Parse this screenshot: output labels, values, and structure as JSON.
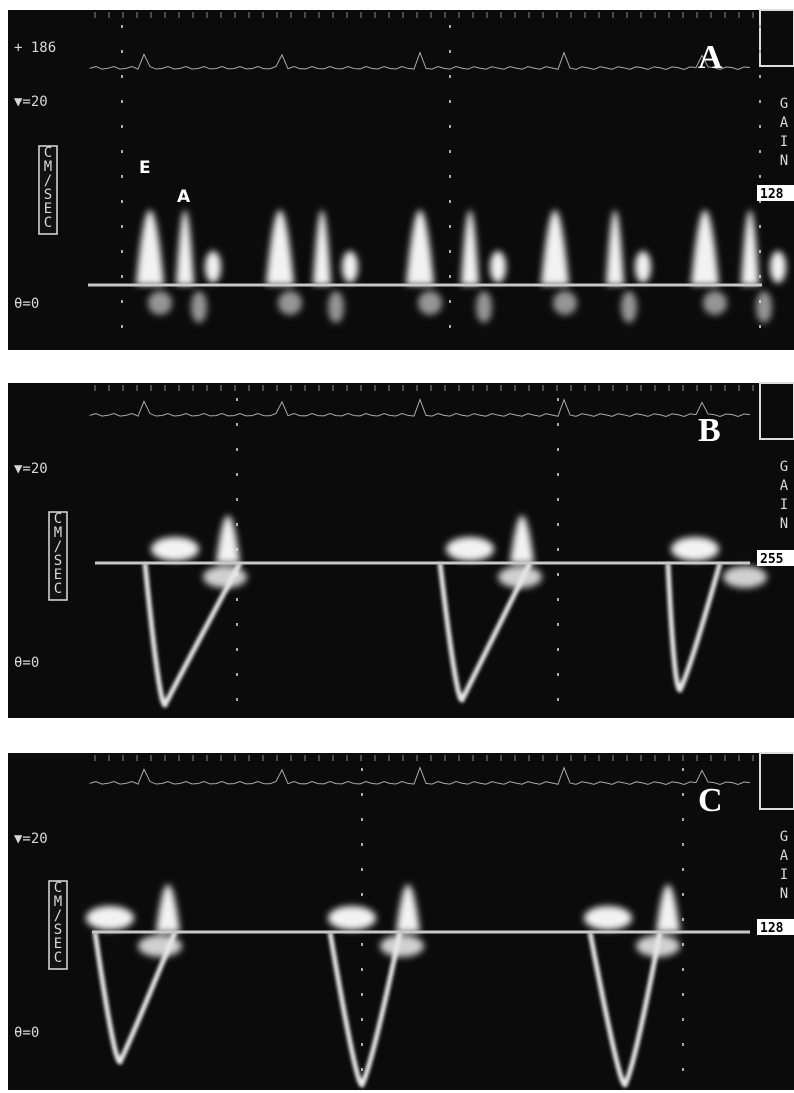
{
  "panels": [
    {
      "label": "A",
      "rate": "+ 186",
      "scale": "▼=20",
      "units": "CM/SEC",
      "angle": "θ=0",
      "gain_label": "GAIN",
      "gain": "128",
      "annotations": [
        "E",
        "A"
      ]
    },
    {
      "label": "B",
      "scale": "▼=20",
      "units": "CM/SEC",
      "angle": "θ=0",
      "gain_label": "GAIN",
      "gain": "255"
    },
    {
      "label": "C",
      "scale": "▼=20",
      "units": "CM/SEC",
      "angle": "θ=0",
      "gain_label": "GAIN",
      "gain": "128"
    }
  ]
}
